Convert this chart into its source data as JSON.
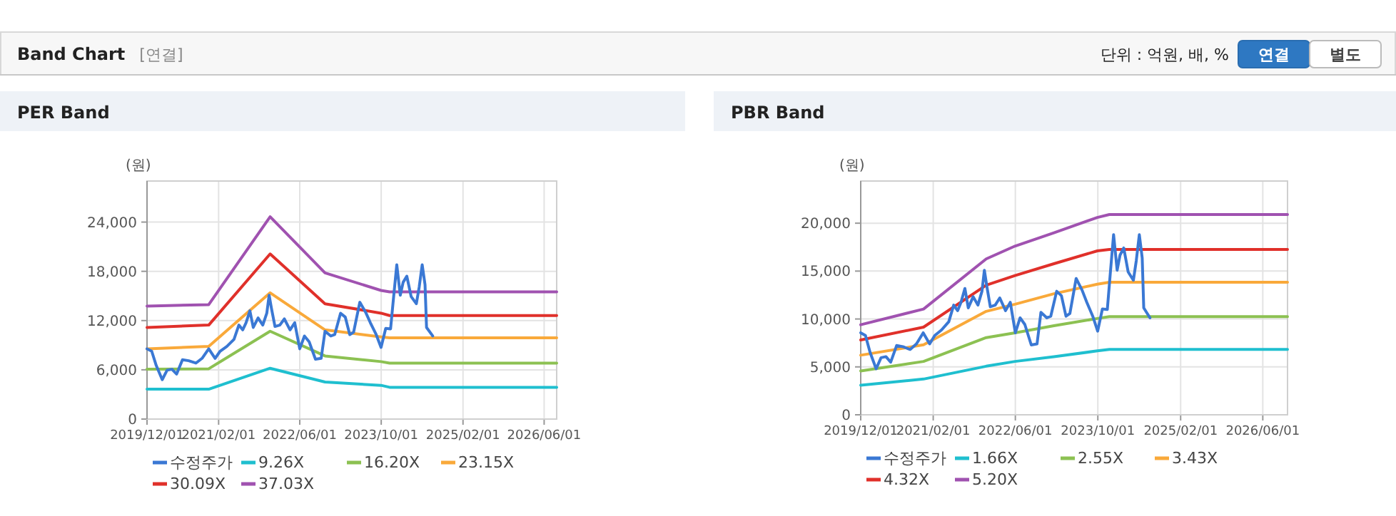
{
  "chart_data": [
    {
      "type": "other",
      "title": "Band Chart",
      "subtitle": "[연결]",
      "annotations": [
        "단위 : 억원, 배, %",
        "연결",
        "별도"
      ]
    },
    {
      "type": "line",
      "title": "PER Band",
      "ylabel": "(원)",
      "xlim": [
        "2019-12-01",
        "2026-08-15"
      ],
      "ylim": [
        0,
        29000
      ],
      "xticks": [
        {
          "value": "2019-12-01",
          "label": "2019/12/01"
        },
        {
          "value": "2021-02-01",
          "label": "2021/02/01"
        },
        {
          "value": "2022-06-01",
          "label": "2022/06/01"
        },
        {
          "value": "2023-10-01",
          "label": "2023/10/01"
        },
        {
          "value": "2025-02-01",
          "label": "2025/02/01"
        },
        {
          "value": "2026-06-01",
          "label": "2026/06/01"
        }
      ],
      "yticks": [
        0,
        {
          "value": 6000,
          "label": "6,000"
        },
        {
          "value": 12000,
          "label": "12,000"
        },
        {
          "value": 18000,
          "label": "18,000"
        },
        {
          "value": 24000,
          "label": "24,000"
        }
      ],
      "grid": true,
      "legend": "bottom",
      "line_style": "solid",
      "marker": "none",
      "series": [
        {
          "name": "수정주가",
          "color": "#3a78d4",
          "x": [
            "2019-12-01",
            "2019-12-29",
            "2020-01-25",
            "2020-03-01",
            "2020-03-30",
            "2020-04-28",
            "2020-05-26",
            "2020-06-30",
            "2020-08-06",
            "2020-09-18",
            "2020-10-25",
            "2020-12-04",
            "2021-01-11",
            "2021-02-10",
            "2021-03-22",
            "2021-05-04",
            "2021-06-02",
            "2021-06-25",
            "2021-07-15",
            "2021-08-07",
            "2021-08-27",
            "2021-09-25",
            "2021-10-23",
            "2021-11-16",
            "2021-11-30",
            "2021-12-14",
            "2022-01-04",
            "2022-02-02",
            "2022-03-01",
            "2022-04-04",
            "2022-05-02",
            "2022-06-01",
            "2022-06-29",
            "2022-07-27",
            "2022-09-03",
            "2022-10-07",
            "2022-10-30",
            "2022-12-04",
            "2022-12-27",
            "2023-01-31",
            "2023-02-28",
            "2023-03-27",
            "2023-04-19",
            "2023-05-26",
            "2023-06-30",
            "2023-07-28",
            "2023-09-01",
            "2023-09-30",
            "2023-10-28",
            "2023-11-26",
            "2023-12-13",
            "2024-01-02",
            "2024-01-23",
            "2024-02-09",
            "2024-03-02",
            "2024-03-28",
            "2024-04-28",
            "2024-05-15",
            "2024-06-02",
            "2024-06-19",
            "2024-06-28",
            "2024-08-04"
          ],
          "values": [
            8560,
            8270,
            6530,
            4800,
            5960,
            6070,
            5490,
            7230,
            7110,
            6820,
            7400,
            8560,
            7400,
            8270,
            8850,
            9720,
            11450,
            10870,
            11740,
            13190,
            11160,
            12320,
            11450,
            12900,
            15090,
            13470,
            11280,
            11450,
            12200,
            10870,
            11740,
            8560,
            10120,
            9430,
            7290,
            7400,
            10700,
            10120,
            10290,
            12900,
            12430,
            10290,
            10580,
            14230,
            13010,
            11740,
            10290,
            8730,
            11050,
            10990,
            14630,
            18800,
            15090,
            16660,
            17410,
            14920,
            14050,
            16080,
            18800,
            16370,
            11160,
            10120
          ]
        },
        {
          "name": "9.26X",
          "color": "#1fbfcf",
          "x": [
            "2019-12-01",
            "2020-12-04",
            "2021-12-06",
            "2022-10-30",
            "2023-09-30",
            "2023-11-20",
            "2026-08-15"
          ],
          "values": [
            3640,
            3640,
            6190,
            4510,
            4110,
            3870,
            3870
          ]
        },
        {
          "name": "16.20X",
          "color": "#8cc152",
          "x": [
            "2019-12-01",
            "2020-12-04",
            "2021-12-06",
            "2022-10-30",
            "2023-09-30",
            "2023-11-20",
            "2026-08-15"
          ],
          "values": [
            6070,
            6130,
            10700,
            7690,
            7000,
            6820,
            6820
          ]
        },
        {
          "name": "23.15X",
          "color": "#f9a93a",
          "x": [
            "2019-12-01",
            "2020-12-04",
            "2021-12-06",
            "2022-10-30",
            "2023-09-30",
            "2023-11-20",
            "2026-08-15"
          ],
          "values": [
            8560,
            8850,
            15380,
            10870,
            10000,
            9890,
            9890
          ]
        },
        {
          "name": "30.09X",
          "color": "#e0302a",
          "x": [
            "2019-12-01",
            "2020-12-04",
            "2021-12-06",
            "2022-10-30",
            "2023-09-30",
            "2023-11-20",
            "2026-08-15"
          ],
          "values": [
            11160,
            11450,
            20120,
            14050,
            12900,
            12610,
            12610
          ]
        },
        {
          "name": "37.03X",
          "color": "#a052b0",
          "x": [
            "2019-12-01",
            "2020-12-04",
            "2021-12-06",
            "2022-10-30",
            "2023-09-30",
            "2023-11-20",
            "2026-08-15"
          ],
          "values": [
            13760,
            13940,
            24640,
            17810,
            15670,
            15500,
            15500
          ]
        }
      ]
    },
    {
      "type": "line",
      "title": "PBR Band",
      "ylabel": "(원)",
      "xlim": [
        "2019-12-01",
        "2026-10-25"
      ],
      "ylim": [
        0,
        24400
      ],
      "xticks": [
        {
          "value": "2019-12-01",
          "label": "2019/12/01"
        },
        {
          "value": "2021-02-01",
          "label": "2021/02/01"
        },
        {
          "value": "2022-06-01",
          "label": "2022/06/01"
        },
        {
          "value": "2023-10-01",
          "label": "2023/10/01"
        },
        {
          "value": "2025-02-01",
          "label": "2025/02/01"
        },
        {
          "value": "2026-06-01",
          "label": "2026/06/01"
        }
      ],
      "yticks": [
        0,
        {
          "value": 5000,
          "label": "5,000"
        },
        {
          "value": 10000,
          "label": "10,000"
        },
        {
          "value": 15000,
          "label": "15,000"
        },
        {
          "value": 20000,
          "label": "20,000"
        }
      ],
      "grid": true,
      "legend": "bottom",
      "line_style": "solid",
      "marker": "none",
      "series": [
        {
          "name": "수정주가",
          "color": "#3a78d4",
          "x": [
            "2019-12-01",
            "2019-12-29",
            "2020-01-25",
            "2020-03-01",
            "2020-03-30",
            "2020-04-28",
            "2020-05-26",
            "2020-06-30",
            "2020-08-06",
            "2020-09-18",
            "2020-10-25",
            "2020-12-04",
            "2021-01-11",
            "2021-02-10",
            "2021-03-22",
            "2021-05-04",
            "2021-06-02",
            "2021-06-25",
            "2021-07-15",
            "2021-08-07",
            "2021-08-27",
            "2021-09-25",
            "2021-10-23",
            "2021-11-16",
            "2021-11-30",
            "2021-12-14",
            "2022-01-04",
            "2022-02-02",
            "2022-03-01",
            "2022-04-04",
            "2022-05-02",
            "2022-06-01",
            "2022-06-29",
            "2022-07-27",
            "2022-09-03",
            "2022-10-07",
            "2022-10-30",
            "2022-12-04",
            "2022-12-27",
            "2023-01-31",
            "2023-02-28",
            "2023-03-27",
            "2023-04-19",
            "2023-05-26",
            "2023-06-30",
            "2023-07-28",
            "2023-09-01",
            "2023-09-30",
            "2023-10-28",
            "2023-11-26",
            "2023-12-13",
            "2024-01-02",
            "2024-01-23",
            "2024-02-09",
            "2024-03-02",
            "2024-03-28",
            "2024-04-28",
            "2024-05-15",
            "2024-06-02",
            "2024-06-19",
            "2024-06-28",
            "2024-08-04"
          ],
          "values": [
            8560,
            8270,
            6530,
            4800,
            5960,
            6070,
            5490,
            7230,
            7110,
            6820,
            7400,
            8560,
            7400,
            8270,
            8850,
            9720,
            11450,
            10870,
            11740,
            13190,
            11160,
            12320,
            11450,
            12900,
            15090,
            13470,
            11280,
            11450,
            12200,
            10870,
            11740,
            8560,
            10120,
            9430,
            7290,
            7400,
            10700,
            10120,
            10290,
            12900,
            12430,
            10290,
            10580,
            14230,
            13010,
            11740,
            10290,
            8730,
            11050,
            10990,
            14630,
            18800,
            15090,
            16660,
            17410,
            14920,
            14050,
            16080,
            18800,
            16370,
            11160,
            10120
          ]
        },
        {
          "name": "1.66X",
          "color": "#1fbfcf",
          "x": [
            "2019-12-01",
            "2020-12-06",
            "2021-12-11",
            "2022-05-30",
            "2023-01-15",
            "2023-09-28",
            "2023-12-08",
            "2026-10-25"
          ],
          "values": [
            3080,
            3730,
            5070,
            5570,
            6070,
            6670,
            6820,
            6820
          ]
        },
        {
          "name": "2.55X",
          "color": "#8cc152",
          "x": [
            "2019-12-01",
            "2020-12-06",
            "2021-12-11",
            "2022-05-30",
            "2023-01-15",
            "2023-09-28",
            "2023-12-08",
            "2026-10-25"
          ],
          "values": [
            4580,
            5570,
            8060,
            8560,
            9300,
            10050,
            10250,
            10250
          ]
        },
        {
          "name": "3.43X",
          "color": "#f9a93a",
          "x": [
            "2019-12-01",
            "2020-12-06",
            "2021-12-11",
            "2022-05-30",
            "2023-01-15",
            "2023-09-28",
            "2023-12-08",
            "2026-10-25"
          ],
          "values": [
            6220,
            7310,
            10800,
            11540,
            12640,
            13630,
            13830,
            13830
          ]
        },
        {
          "name": "4.32X",
          "color": "#e0302a",
          "x": [
            "2019-12-01",
            "2020-12-06",
            "2021-12-11",
            "2022-05-30",
            "2023-01-15",
            "2023-09-28",
            "2023-12-08",
            "2026-10-25"
          ],
          "values": [
            7810,
            9150,
            13530,
            14530,
            15770,
            17110,
            17260,
            17260
          ]
        },
        {
          "name": "5.20X",
          "color": "#a052b0",
          "x": [
            "2019-12-01",
            "2020-12-06",
            "2021-12-11",
            "2022-05-30",
            "2023-01-15",
            "2023-09-28",
            "2023-12-08",
            "2026-10-25"
          ],
          "values": [
            9400,
            11040,
            16270,
            17610,
            19000,
            20600,
            20900,
            20900
          ]
        }
      ]
    }
  ]
}
